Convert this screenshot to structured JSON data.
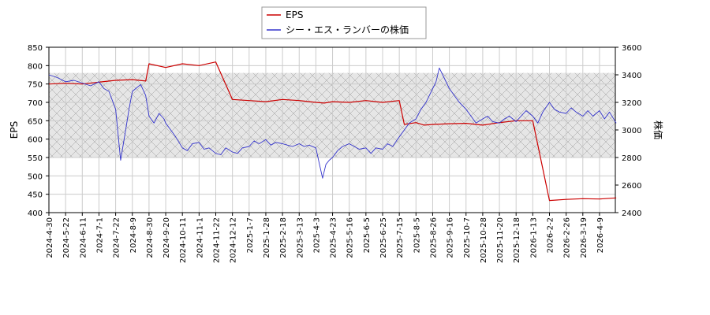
{
  "chart_data": {
    "type": "line",
    "legend_position": "top-center",
    "grid": true,
    "shaded_band": {
      "axis": "left",
      "from": 550,
      "to": 780,
      "pattern": "crosshatch"
    },
    "x_tick_labels": [
      "2024-4-30",
      "2024-5-22",
      "2024-6-11",
      "2024-7-1",
      "2024-7-22",
      "2024-8-9",
      "2024-8-30",
      "2024-9-20",
      "2024-10-11",
      "2024-11-1",
      "2024-11-22",
      "2024-12-12",
      "2025-1-7",
      "2025-1-28",
      "2025-2-18",
      "2025-3-13",
      "2025-4-3",
      "2025-4-23",
      "2025-5-16",
      "2025-6-5",
      "2025-6-25",
      "2025-7-15",
      "2025-8-5",
      "2025-8-26",
      "2025-9-16",
      "2025-10-7",
      "2025-10-28",
      "2025-11-20",
      "2025-12-18",
      "2026-1-13",
      "2026-2-2",
      "2026-2-26",
      "2026-3-19",
      "2026-4-9"
    ],
    "left_axis": {
      "label": "EPS",
      "ylim": [
        400,
        850
      ],
      "ticks": [
        400,
        450,
        500,
        550,
        600,
        650,
        700,
        750,
        800,
        850
      ]
    },
    "right_axis": {
      "label": "株価",
      "ylim": [
        2400,
        3600
      ],
      "ticks": [
        2400,
        2600,
        2800,
        3000,
        3200,
        3400,
        3600
      ]
    },
    "series": [
      {
        "name": "EPS",
        "axis": "left",
        "color": "#cc0000",
        "x": [
          0,
          1,
          2,
          3,
          4,
          5,
          5.8,
          6,
          7,
          8,
          9,
          10,
          11,
          12,
          13,
          14,
          15,
          16,
          16.5,
          17,
          18,
          19,
          20,
          21,
          21.3,
          22,
          22.5,
          23,
          24,
          25,
          26,
          27,
          28,
          29,
          30,
          31,
          32,
          33,
          34
        ],
        "y": [
          750,
          752,
          750,
          755,
          760,
          762,
          758,
          805,
          795,
          805,
          800,
          810,
          708,
          705,
          702,
          708,
          705,
          700,
          698,
          702,
          700,
          705,
          700,
          705,
          640,
          645,
          638,
          640,
          642,
          643,
          638,
          645,
          650,
          650,
          433,
          436,
          438,
          437,
          440
        ]
      },
      {
        "name": "シー・エス・ランバーの株価",
        "axis": "right",
        "color": "#3333cc",
        "x": [
          0,
          0.5,
          1,
          1.5,
          2,
          2.5,
          3,
          3.3,
          3.6,
          4,
          4.3,
          4.6,
          4.8,
          5,
          5.2,
          5.5,
          5.8,
          6,
          6.3,
          6.6,
          6.9,
          7,
          7.3,
          7.6,
          8,
          8.3,
          8.6,
          9,
          9.3,
          9.6,
          10,
          10.3,
          10.6,
          11,
          11.3,
          11.6,
          12,
          12.3,
          12.6,
          13,
          13.3,
          13.6,
          14,
          14.3,
          14.6,
          15,
          15.3,
          15.6,
          16,
          16.2,
          16.4,
          16.6,
          16.8,
          17,
          17.3,
          17.6,
          18,
          18.3,
          18.6,
          19,
          19.3,
          19.6,
          20,
          20.3,
          20.6,
          21,
          21.3,
          21.6,
          22,
          22.3,
          22.6,
          23,
          23.2,
          23.4,
          23.6,
          24,
          24.3,
          24.6,
          25,
          25.3,
          25.6,
          26,
          26.3,
          26.6,
          27,
          27.3,
          27.6,
          28,
          28.3,
          28.6,
          29,
          29.3,
          29.6,
          30,
          30.3,
          30.6,
          31,
          31.3,
          31.6,
          32,
          32.3,
          32.6,
          33,
          33.3,
          33.6,
          34
        ],
        "y": [
          3400,
          3380,
          3350,
          3360,
          3340,
          3320,
          3350,
          3300,
          3280,
          3150,
          2780,
          3000,
          3150,
          3280,
          3300,
          3330,
          3250,
          3100,
          3050,
          3120,
          3080,
          3050,
          3000,
          2950,
          2870,
          2850,
          2900,
          2910,
          2860,
          2870,
          2830,
          2820,
          2870,
          2840,
          2830,
          2870,
          2880,
          2920,
          2900,
          2930,
          2890,
          2910,
          2900,
          2890,
          2880,
          2900,
          2880,
          2890,
          2870,
          2760,
          2650,
          2750,
          2780,
          2800,
          2850,
          2880,
          2900,
          2880,
          2860,
          2870,
          2830,
          2870,
          2860,
          2900,
          2880,
          2950,
          3000,
          3050,
          3080,
          3150,
          3200,
          3300,
          3350,
          3450,
          3400,
          3300,
          3250,
          3200,
          3150,
          3100,
          3050,
          3080,
          3100,
          3060,
          3050,
          3080,
          3100,
          3060,
          3100,
          3140,
          3100,
          3050,
          3130,
          3200,
          3150,
          3130,
          3120,
          3160,
          3130,
          3100,
          3140,
          3100,
          3140,
          3080,
          3130,
          3050
        ]
      }
    ]
  }
}
